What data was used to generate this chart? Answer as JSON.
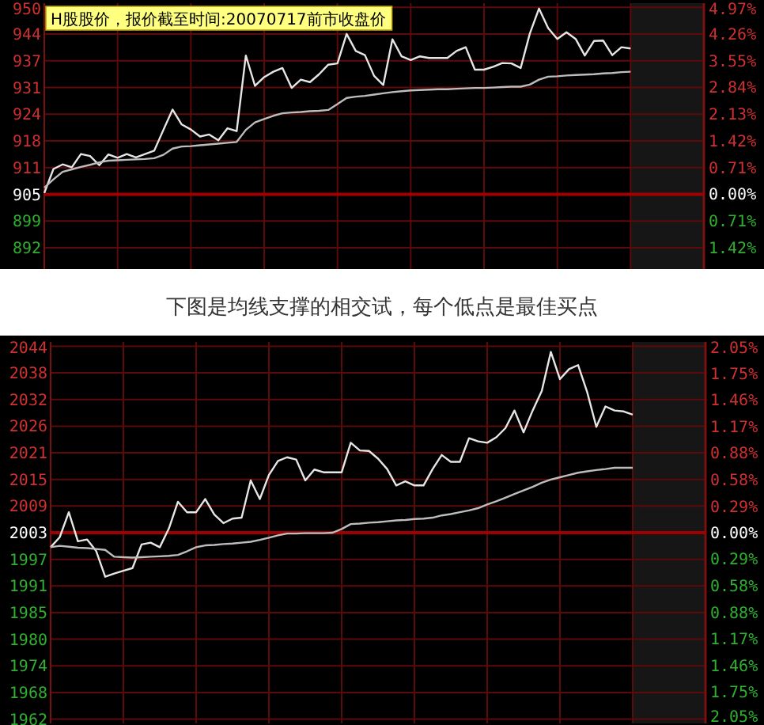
{
  "chart_data": [
    {
      "type": "line",
      "annotations": [
        "H股股价，报价截至时间:20070717前市收盘价"
      ],
      "categories": [
        null,
        null,
        null,
        null,
        null,
        null,
        null,
        null,
        null,
        null,
        null,
        null,
        null,
        null,
        null,
        null,
        null,
        null,
        null,
        null,
        null,
        null,
        null,
        null,
        null,
        null,
        null,
        null,
        null,
        null,
        null,
        null,
        null,
        null,
        null,
        null,
        null,
        null,
        null,
        null,
        null,
        null,
        null,
        null,
        null,
        null,
        null,
        null,
        null,
        null,
        null,
        null,
        null,
        null,
        null,
        null,
        null,
        null,
        null,
        null,
        null,
        null,
        null,
        null,
        null
      ],
      "ylim": [
        887,
        951
      ],
      "yticks": [
        {
          "value": 949.98,
          "label": "950"
        },
        {
          "value": 943.56,
          "label": "944"
        },
        {
          "value": 937.13,
          "label": "937"
        },
        {
          "value": 930.7,
          "label": "931"
        },
        {
          "value": 924.28,
          "label": "924"
        },
        {
          "value": 917.85,
          "label": "918"
        },
        {
          "value": 911.43,
          "label": "911"
        },
        {
          "value": 905,
          "label": "905"
        },
        {
          "value": 898.57,
          "label": "899"
        },
        {
          "value": 892.15,
          "label": "892"
        }
      ],
      "y2lim": [
        -1.99,
        5.08
      ],
      "y2ticks": [
        {
          "value": 4.97,
          "label": "4.97%"
        },
        {
          "value": 4.26,
          "label": "4.26%"
        },
        {
          "value": 3.55,
          "label": "3.55%"
        },
        {
          "value": 2.84,
          "label": "2.84%"
        },
        {
          "value": 2.13,
          "label": "2.13%"
        },
        {
          "value": 1.42,
          "label": "1.42%"
        },
        {
          "value": 0.71,
          "label": "0.71%"
        },
        {
          "value": 0,
          "label": "0.00%"
        },
        {
          "value": -0.71,
          "label": "0.71%"
        },
        {
          "value": -1.42,
          "label": "1.42%"
        }
      ],
      "grid": true,
      "ref_lines": [
        {
          "axis": "y",
          "value": 905,
          "color": "#a00000"
        }
      ],
      "series": [
        {
          "color": "#e6e6e6",
          "values": [
            905.3,
            911.1,
            912.2,
            911.5,
            914.7,
            914.2,
            912,
            914.6,
            913.8,
            914.7,
            913.9,
            914.7,
            915.5,
            920.5,
            925.4,
            921.8,
            920.6,
            918.9,
            919.4,
            918,
            920.9,
            920.2,
            938.4,
            931.1,
            933.2,
            934.5,
            935.4,
            930.6,
            932.6,
            932,
            933.9,
            936.2,
            936.5,
            943.6,
            939.5,
            938.5,
            933.5,
            931.3,
            942.3,
            938.2,
            937.3,
            938.2,
            937.8,
            937.8,
            937.8,
            939.5,
            940.4,
            935,
            935,
            935.7,
            936.6,
            936.5,
            935.4,
            943.7,
            949.7,
            945,
            942.4,
            944,
            942.4,
            938.4,
            941.9,
            942,
            938.5,
            940.4,
            940.1
          ]
        },
        {
          "color": "#bdbdbd",
          "values": [
            906.6,
            908.6,
            910.4,
            911,
            911.6,
            912.1,
            912.7,
            913.1,
            913.2,
            913.3,
            913.4,
            913.5,
            913.7,
            914.5,
            916,
            916.5,
            916.6,
            916.8,
            917,
            917.2,
            917.4,
            917.6,
            920.5,
            922.3,
            923.1,
            923.9,
            924.5,
            924.7,
            924.8,
            925,
            925.1,
            925.3,
            926.7,
            928.2,
            928.5,
            928.7,
            929,
            929.3,
            929.6,
            929.8,
            930,
            930.1,
            930.2,
            930.3,
            930.3,
            930.4,
            930.5,
            930.6,
            930.6,
            930.7,
            930.8,
            930.9,
            930.9,
            931.4,
            932.6,
            933.3,
            933.4,
            933.6,
            933.7,
            933.8,
            933.9,
            934.1,
            934.2,
            934.4,
            934.5
          ]
        }
      ]
    },
    {
      "type": "line",
      "title": "下图是均线支撑的相交试，每个低点是最佳买点",
      "categories": [
        null,
        null,
        null,
        null,
        null,
        null,
        null,
        null,
        null,
        null,
        null,
        null,
        null,
        null,
        null,
        null,
        null,
        null,
        null,
        null,
        null,
        null,
        null,
        null,
        null,
        null,
        null,
        null,
        null,
        null,
        null,
        null,
        null,
        null,
        null,
        null,
        null,
        null,
        null,
        null,
        null,
        null,
        null,
        null,
        null,
        null,
        null,
        null,
        null,
        null,
        null,
        null,
        null,
        null,
        null,
        null,
        null,
        null,
        null,
        null,
        null,
        null,
        null,
        null,
        null
      ],
      "ylim": [
        1961,
        2045
      ],
      "yticks": [
        {
          "value": 2044.06,
          "label": "2044"
        },
        {
          "value": 2038.2,
          "label": "2038"
        },
        {
          "value": 2032.33,
          "label": "2032"
        },
        {
          "value": 2026.46,
          "label": "2026"
        },
        {
          "value": 2020.6,
          "label": "2021"
        },
        {
          "value": 2014.73,
          "label": "2015"
        },
        {
          "value": 2008.87,
          "label": "2009"
        },
        {
          "value": 2003,
          "label": "2003"
        },
        {
          "value": 1997.13,
          "label": "1997"
        },
        {
          "value": 1991.27,
          "label": "1991"
        },
        {
          "value": 1985.4,
          "label": "1985"
        },
        {
          "value": 1979.54,
          "label": "1980"
        },
        {
          "value": 1973.67,
          "label": "1974"
        },
        {
          "value": 1967.8,
          "label": "1968"
        },
        {
          "value": 1961.94,
          "label": "1962"
        }
      ],
      "y2lim": [
        -2.1,
        2.1
      ],
      "y2ticks": [
        {
          "value": 2.05,
          "label": "2.05%"
        },
        {
          "value": 1.75,
          "label": "1.75%"
        },
        {
          "value": 1.46,
          "label": "1.46%"
        },
        {
          "value": 1.17,
          "label": "1.17%"
        },
        {
          "value": 0.88,
          "label": "0.88%"
        },
        {
          "value": 0.58,
          "label": "0.58%"
        },
        {
          "value": 0.29,
          "label": "0.29%"
        },
        {
          "value": 0,
          "label": "0.00%"
        },
        {
          "value": -0.29,
          "label": "0.29%"
        },
        {
          "value": -0.58,
          "label": "0.58%"
        },
        {
          "value": -0.88,
          "label": "0.88%"
        },
        {
          "value": -1.17,
          "label": "1.17%"
        },
        {
          "value": -1.46,
          "label": "1.46%"
        },
        {
          "value": -1.75,
          "label": "1.75%"
        },
        {
          "value": -2.05,
          "label": "2.05%"
        }
      ],
      "grid": true,
      "ref_lines": [
        {
          "axis": "y",
          "value": 2003,
          "color": "#a00000"
        }
      ],
      "series": [
        {
          "color": "#e6e6e6",
          "values": [
            1999.8,
            2002,
            2007.5,
            2001.1,
            2001.5,
            1999,
            1993.3,
            1994,
            1994.6,
            1995.2,
            2000.4,
            2000.8,
            1999.8,
            2003.9,
            2009.8,
            2007.5,
            2007.5,
            2010.4,
            2007,
            2005.1,
            2006.1,
            2006.3,
            2014.5,
            2010.4,
            2015.7,
            2018.8,
            2019.6,
            2019.1,
            2014.5,
            2016.9,
            2016.3,
            2016.3,
            2016.3,
            2022.8,
            2021.1,
            2021,
            2019.3,
            2017,
            2013.4,
            2014.3,
            2013.4,
            2013.4,
            2017,
            2020.1,
            2018.6,
            2018.6,
            2023.8,
            2023.1,
            2022.8,
            2024,
            2026,
            2029.9,
            2025.1,
            2029.9,
            2034.2,
            2042.8,
            2036.8,
            2039,
            2039.9,
            2033.9,
            2026.3,
            2030.8,
            2029.9,
            2029.7,
            2029
          ]
        },
        {
          "color": "#bdbdbd",
          "values": [
            1999.8,
            2000.1,
            1999.9,
            1999.7,
            1999.6,
            1999.4,
            1999.2,
            1997.7,
            1997.6,
            1997.5,
            1997.6,
            1997.7,
            1997.8,
            1997.9,
            1998.1,
            1998.9,
            1999.8,
            2000.2,
            2000.3,
            2000.5,
            2000.6,
            2000.8,
            2001,
            2001.4,
            2001.9,
            2002.4,
            2002.8,
            2002.8,
            2002.9,
            2002.9,
            2002.9,
            2003,
            2003.8,
            2004.9,
            2005,
            2005.2,
            2005.3,
            2005.5,
            2005.7,
            2005.8,
            2006,
            2006.1,
            2006.3,
            2006.8,
            2007.1,
            2007.5,
            2007.9,
            2008.4,
            2009.2,
            2009.9,
            2010.7,
            2011.5,
            2012.3,
            2013.1,
            2014,
            2014.7,
            2015.2,
            2015.7,
            2016.2,
            2016.5,
            2016.8,
            2017,
            2017.3,
            2017.3,
            2017.3
          ]
        }
      ]
    }
  ]
}
